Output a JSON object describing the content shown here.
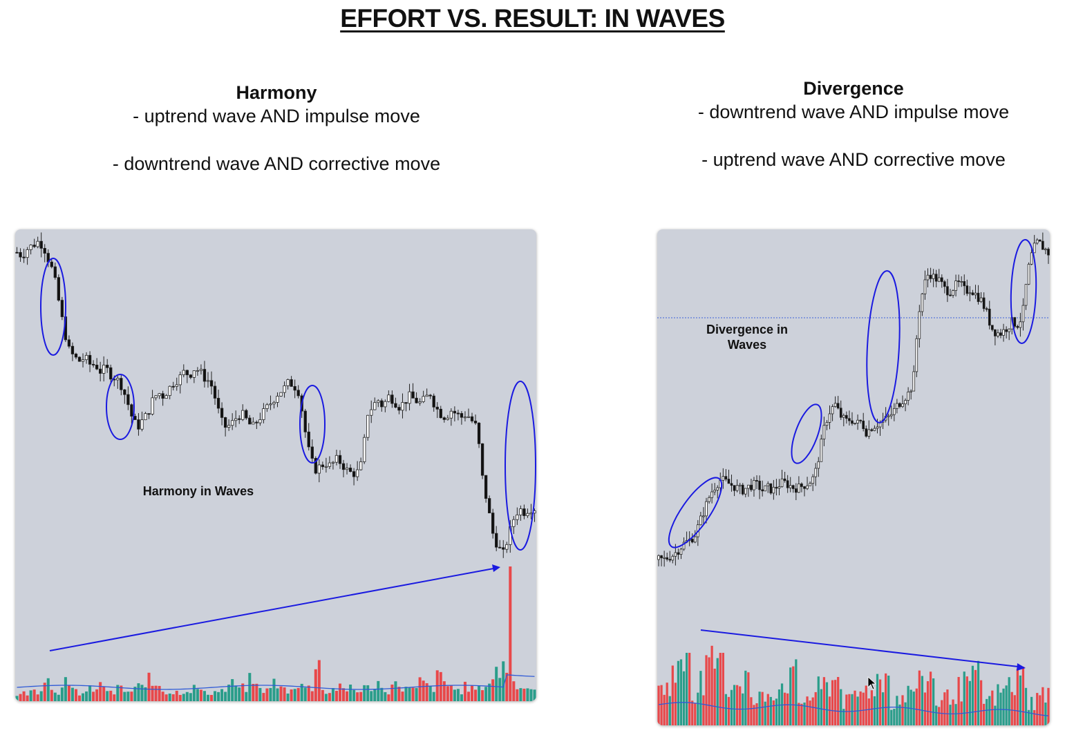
{
  "page": {
    "title": "EFFORT VS. RESULT: IN WAVES"
  },
  "harmony": {
    "heading": "Harmony",
    "lines": [
      "- uptrend wave AND impulse move",
      "- downtrend wave AND corrective move"
    ],
    "annotation": "Harmony in Waves"
  },
  "divergence": {
    "heading": "Divergence",
    "lines": [
      "- downtrend wave AND impulse move",
      "- uptrend wave AND corrective move"
    ],
    "annotation_line1": "Divergence in",
    "annotation_line2": "Waves"
  },
  "colors": {
    "panel_bg": "#cdd1da",
    "candle_up": "#ffffff",
    "candle_down": "#111111",
    "volume_up": "#2a9d8a",
    "volume_down": "#e8484a",
    "volume_ma": "#2f5ad6",
    "annotation_blue": "#1a1ae0"
  },
  "chart_data": [
    {
      "type": "candlestick",
      "name": "Harmony in Waves",
      "price_path": [
        94,
        93,
        95,
        96,
        97,
        96,
        92,
        88,
        80,
        72,
        66,
        64,
        63,
        64,
        62,
        62,
        60,
        61,
        59,
        58,
        56,
        52,
        47,
        44,
        46,
        48,
        52,
        54,
        53,
        55,
        57,
        58,
        60,
        59,
        61,
        60,
        58,
        57,
        52,
        46,
        44,
        45,
        47,
        48,
        46,
        44,
        46,
        48,
        50,
        52,
        54,
        55,
        57,
        56,
        54,
        44,
        36,
        32,
        33,
        34,
        33,
        35,
        34,
        32,
        31,
        31,
        34,
        48,
        50,
        52,
        50,
        53,
        52,
        50,
        51,
        53,
        52,
        51,
        52,
        54,
        50,
        48,
        47,
        49,
        48,
        47,
        48,
        46,
        44,
        30,
        22,
        14,
        10,
        8,
        13,
        18,
        21,
        20,
        21,
        21
      ],
      "volume_path": [
        5,
        6,
        7,
        8,
        9,
        22,
        8,
        7,
        16,
        9,
        8,
        6,
        7,
        9,
        8,
        12,
        9,
        6,
        10,
        8,
        7,
        9,
        11,
        16,
        12,
        13,
        9,
        7,
        6,
        7,
        8,
        9,
        10,
        8,
        6,
        7,
        9,
        8,
        12,
        13,
        9,
        10,
        16,
        11,
        9,
        8,
        14,
        10,
        9,
        8,
        12,
        14,
        10,
        9,
        34,
        8,
        7,
        9,
        10,
        8,
        12,
        9,
        7,
        10,
        11,
        14,
        9,
        8,
        12,
        13,
        10,
        9,
        8,
        15,
        11,
        10,
        18,
        14,
        12,
        9,
        8,
        11,
        10,
        9,
        12,
        13,
        20,
        22,
        27,
        98,
        14,
        12,
        10,
        11,
        9
      ]
    },
    {
      "type": "candlestick",
      "name": "Divergence in Waves",
      "price_path": [
        6,
        6,
        7,
        8,
        10,
        12,
        13,
        15,
        20,
        25,
        30,
        33,
        35,
        34,
        33,
        32,
        31,
        32,
        33,
        33,
        31,
        32,
        31,
        33,
        34,
        33,
        32,
        32,
        33,
        34,
        36,
        45,
        55,
        60,
        62,
        58,
        56,
        57,
        55,
        56,
        52,
        54,
        55,
        56,
        57,
        59,
        62,
        64,
        66,
        70,
        95,
        105,
        110,
        108,
        107,
        104,
        103,
        105,
        106,
        103,
        104,
        102,
        100,
        96,
        90,
        88,
        88,
        90,
        92,
        91,
        94,
        110,
        118,
        121,
        119,
        117
      ]
    }
  ]
}
